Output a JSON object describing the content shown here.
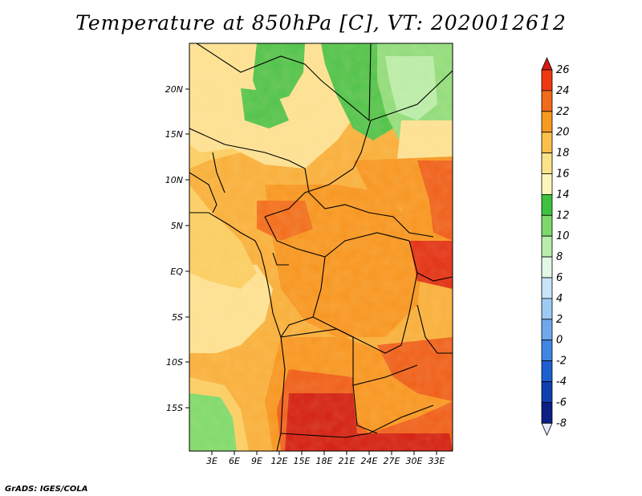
{
  "title": "Temperature at 850hPa [C], VT: 2020012612",
  "credit": "GrADS: IGES/COLA",
  "map": {
    "lon_labels": [
      "3E",
      "6E",
      "9E",
      "12E",
      "15E",
      "18E",
      "21E",
      "24E",
      "27E",
      "30E",
      "33E"
    ],
    "lat_labels": [
      "20N",
      "15N",
      "10N",
      "5N",
      "EQ",
      "5S",
      "10S",
      "15S"
    ]
  },
  "colorbar": {
    "labels": [
      "26",
      "24",
      "22",
      "20",
      "18",
      "16",
      "14",
      "12",
      "10",
      "8",
      "6",
      "4",
      "2",
      "0",
      "-2",
      "-4",
      "-6",
      "-8"
    ],
    "colors": [
      "#d21b0f",
      "#ef3a11",
      "#f26b1a",
      "#f79a21",
      "#fbc04a",
      "#fbe38a",
      "#fdf6bb",
      "#3fc140",
      "#7cd96b",
      "#b8edaa",
      "#e3f7e6",
      "#c8e4f8",
      "#9dcbf3",
      "#6ea9ec",
      "#3f87e2",
      "#1d5fcf",
      "#0f3fb0",
      "#0b1f84",
      "#0a0a66"
    ]
  }
}
